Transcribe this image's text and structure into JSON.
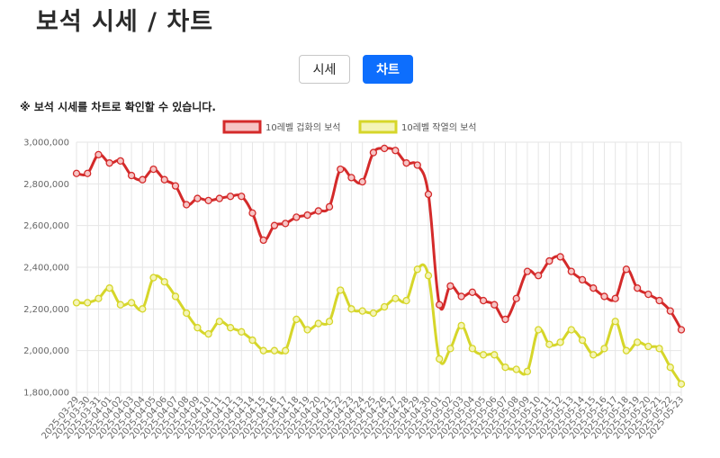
{
  "header": {
    "title": "보석 시세 / 차트"
  },
  "toggle": {
    "price_label": "시세",
    "chart_label": "차트"
  },
  "notice": "※ 보석 시세를 차트로 확인할 수 있습니다.",
  "colors": {
    "series_red": "#d42a2a",
    "series_red_fill": "#f6c5c5",
    "series_yellow": "#d6d62a",
    "series_yellow_fill": "#f4f4b8",
    "active_button": "#0d6efd",
    "grid": "#e6e6e6"
  },
  "chart_data": {
    "type": "line",
    "ylim": [
      1800000,
      3000000
    ],
    "yticks": [
      1800000,
      2000000,
      2200000,
      2400000,
      2600000,
      2800000,
      3000000
    ],
    "ytick_labels": [
      "1,800,000",
      "2,000,000",
      "2,200,000",
      "2,400,000",
      "2,600,000",
      "2,800,000",
      "3,000,000"
    ],
    "grid": true,
    "legend_position": "top-center",
    "x": [
      "2025-03-29",
      "2025-03-30",
      "2025-03-31",
      "2025-04-01",
      "2025-04-02",
      "2025-04-03",
      "2025-04-04",
      "2025-04-05",
      "2025-04-06",
      "2025-04-07",
      "2025-04-08",
      "2025-04-09",
      "2025-04-10",
      "2025-04-11",
      "2025-04-12",
      "2025-04-13",
      "2025-04-14",
      "2025-04-15",
      "2025-04-16",
      "2025-04-17",
      "2025-04-18",
      "2025-04-19",
      "2025-04-20",
      "2025-04-21",
      "2025-04-22",
      "2025-04-23",
      "2025-04-24",
      "2025-04-25",
      "2025-04-26",
      "2025-04-27",
      "2025-04-28",
      "2025-04-29",
      "2025-04-30",
      "2025-05-01",
      "2025-05-02",
      "2025-05-03",
      "2025-05-04",
      "2025-05-05",
      "2025-05-06",
      "2025-05-07",
      "2025-05-08",
      "2025-05-09",
      "2025-05-10",
      "2025-05-11",
      "2025-05-12",
      "2025-05-13",
      "2025-05-14",
      "2025-05-15",
      "2025-05-16",
      "2025-05-17",
      "2025-05-18",
      "2025-05-19",
      "2025-05-20",
      "2025-05-21",
      "2025-05-22",
      "2025-05-23"
    ],
    "series": [
      {
        "name": "10레벨 겁화의 보석",
        "values": [
          2850000,
          2850000,
          2940000,
          2900000,
          2910000,
          2840000,
          2820000,
          2870000,
          2820000,
          2790000,
          2700000,
          2730000,
          2720000,
          2730000,
          2740000,
          2740000,
          2660000,
          2530000,
          2600000,
          2610000,
          2640000,
          2650000,
          2670000,
          2690000,
          2870000,
          2830000,
          2810000,
          2950000,
          2970000,
          2960000,
          2900000,
          2890000,
          2750000,
          2220000,
          2310000,
          2260000,
          2280000,
          2240000,
          2220000,
          2150000,
          2250000,
          2380000,
          2360000,
          2430000,
          2450000,
          2380000,
          2340000,
          2300000,
          2260000,
          2250000,
          2390000,
          2300000,
          2270000,
          2240000,
          2190000,
          2100000
        ]
      },
      {
        "name": "10레벨 작열의 보석",
        "values": [
          2230000,
          2230000,
          2250000,
          2300000,
          2220000,
          2230000,
          2200000,
          2350000,
          2330000,
          2260000,
          2180000,
          2110000,
          2080000,
          2140000,
          2110000,
          2090000,
          2050000,
          2000000,
          2000000,
          2000000,
          2150000,
          2100000,
          2130000,
          2140000,
          2290000,
          2200000,
          2190000,
          2180000,
          2210000,
          2250000,
          2240000,
          2390000,
          2360000,
          1960000,
          2010000,
          2120000,
          2010000,
          1980000,
          1980000,
          1920000,
          1910000,
          1900000,
          2100000,
          2030000,
          2040000,
          2100000,
          2050000,
          1980000,
          2010000,
          2140000,
          2000000,
          2040000,
          2020000,
          2010000,
          1920000,
          1840000
        ]
      }
    ]
  }
}
